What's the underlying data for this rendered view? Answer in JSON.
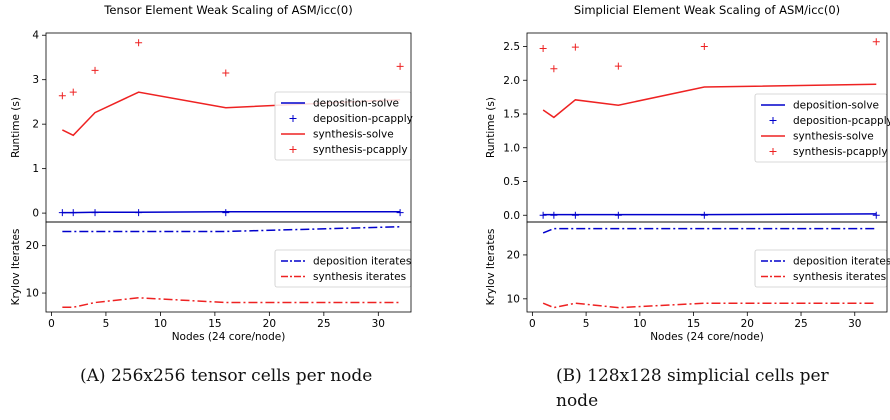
{
  "chart_data": [
    {
      "type": "line",
      "title": "Tensor Element Weak Scaling of ASM/icc(0)",
      "xlabel": "Nodes (24 core/node)",
      "xlim": [
        -0.5,
        33
      ],
      "x_ticks": [
        0,
        5,
        10,
        15,
        20,
        25,
        30
      ],
      "top": {
        "ylabel": "Runtime (s)",
        "ylim": [
          -0.2,
          4.05
        ],
        "y_ticks": [
          0,
          1,
          2,
          3,
          4
        ],
        "legend_position": "right",
        "series": [
          {
            "name": "deposition-solve",
            "style": "solid",
            "color": "#0000cc",
            "x": [
              1,
              2,
              4,
              8,
              16,
              32
            ],
            "y": [
              0.01,
              0.01,
              0.02,
              0.02,
              0.03,
              0.03
            ]
          },
          {
            "name": "deposition-pcapply",
            "style": "plus",
            "color": "#0000cc",
            "x": [
              1,
              2,
              4,
              8,
              16,
              32
            ],
            "y": [
              0.01,
              0.01,
              0.01,
              0.01,
              0.01,
              0.01
            ]
          },
          {
            "name": "synthesis-solve",
            "style": "solid",
            "color": "#ee2222",
            "x": [
              1,
              2,
              4,
              8,
              16,
              32
            ],
            "y": [
              1.87,
              1.75,
              2.26,
              2.72,
              2.37,
              2.55
            ]
          },
          {
            "name": "synthesis-pcapply",
            "style": "plus",
            "color": "#ee2222",
            "x": [
              1,
              2,
              4,
              8,
              16,
              32
            ],
            "y": [
              2.64,
              2.72,
              3.21,
              3.83,
              3.15,
              3.3
            ]
          }
        ]
      },
      "bottom": {
        "ylabel": "Krylov Iterates",
        "ylim": [
          6,
          25
        ],
        "y_ticks": [
          10,
          20
        ],
        "legend_position": "right",
        "series": [
          {
            "name": "deposition iterates",
            "style": "dashdot",
            "color": "#0000cc",
            "x": [
              1,
              2,
              4,
              8,
              16,
              32
            ],
            "y": [
              23,
              23,
              23,
              23,
              23,
              24
            ]
          },
          {
            "name": "synthesis iterates",
            "style": "dashdot",
            "color": "#ee2222",
            "x": [
              1,
              2,
              4,
              8,
              16,
              32
            ],
            "y": [
              7,
              7,
              8,
              9,
              8,
              8
            ]
          }
        ]
      }
    },
    {
      "type": "line",
      "title": "Simplicial Element Weak Scaling of ASM/icc(0)",
      "xlabel": "Nodes (24 core/node)",
      "xlim": [
        -0.5,
        33
      ],
      "x_ticks": [
        0,
        5,
        10,
        15,
        20,
        25,
        30
      ],
      "top": {
        "ylabel": "Runtime (s)",
        "ylim": [
          -0.1,
          2.7
        ],
        "y_ticks": [
          0.0,
          0.5,
          1.0,
          1.5,
          2.0,
          2.5
        ],
        "legend_position": "right",
        "series": [
          {
            "name": "deposition-solve",
            "style": "solid",
            "color": "#0000cc",
            "x": [
              1,
              2,
              4,
              8,
              16,
              32
            ],
            "y": [
              0.01,
              0.01,
              0.01,
              0.01,
              0.01,
              0.02
            ]
          },
          {
            "name": "deposition-pcapply",
            "style": "plus",
            "color": "#0000cc",
            "x": [
              1,
              2,
              4,
              8,
              16,
              32
            ],
            "y": [
              0.0,
              0.0,
              0.0,
              0.0,
              0.0,
              0.0
            ]
          },
          {
            "name": "synthesis-solve",
            "style": "solid",
            "color": "#ee2222",
            "x": [
              1,
              2,
              4,
              8,
              16,
              32
            ],
            "y": [
              1.56,
              1.45,
              1.71,
              1.63,
              1.9,
              1.94
            ]
          },
          {
            "name": "synthesis-pcapply",
            "style": "plus",
            "color": "#ee2222",
            "x": [
              1,
              2,
              4,
              8,
              16,
              32
            ],
            "y": [
              2.47,
              2.17,
              2.49,
              2.21,
              2.5,
              2.57
            ]
          }
        ]
      },
      "bottom": {
        "ylabel": "Krylov Iterates",
        "ylim": [
          7,
          27.5
        ],
        "y_ticks": [
          10,
          20
        ],
        "legend_position": "right",
        "series": [
          {
            "name": "deposition iterates",
            "style": "dashdot",
            "color": "#0000cc",
            "x": [
              1,
              2,
              4,
              8,
              16,
              32
            ],
            "y": [
              25,
              26,
              26,
              26,
              26,
              26
            ]
          },
          {
            "name": "synthesis iterates",
            "style": "dashdot",
            "color": "#ee2222",
            "x": [
              1,
              2,
              4,
              8,
              16,
              32
            ],
            "y": [
              9,
              8,
              9,
              8,
              9,
              9
            ]
          }
        ]
      }
    }
  ],
  "captions": [
    {
      "label": "(A)",
      "text": "256x256 tensor cells per node"
    },
    {
      "label": "(B)",
      "text": "128x128 simplicial cells per node"
    }
  ]
}
